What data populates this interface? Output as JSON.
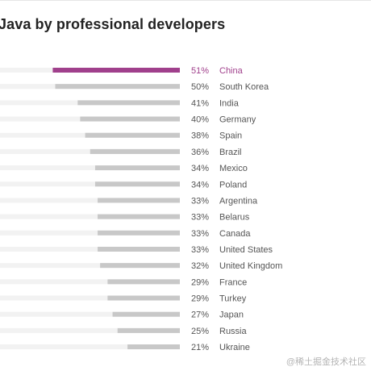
{
  "title": "Java by professional developers",
  "watermark": "@稀土掘金技术社区",
  "colors": {
    "highlight": "#a0408c",
    "bar": "#c8c8c8",
    "track": "#f2f2f2",
    "label": "#555555",
    "title": "#222222"
  },
  "chart_data": {
    "type": "bar",
    "orientation": "horizontal",
    "title": "Java by professional developers",
    "unit": "%",
    "xlim": [
      0,
      100
    ],
    "grid": false,
    "legend": "none",
    "highlight_category": "China",
    "categories": [
      "China",
      "South Korea",
      "India",
      "Germany",
      "Spain",
      "Brazil",
      "Mexico",
      "Poland",
      "Argentina",
      "Belarus",
      "Canada",
      "United States",
      "United Kingdom",
      "France",
      "Turkey",
      "Japan",
      "Russia",
      "Ukraine"
    ],
    "values": [
      51,
      50,
      41,
      40,
      38,
      36,
      34,
      34,
      33,
      33,
      33,
      33,
      32,
      29,
      29,
      27,
      25,
      21
    ]
  }
}
